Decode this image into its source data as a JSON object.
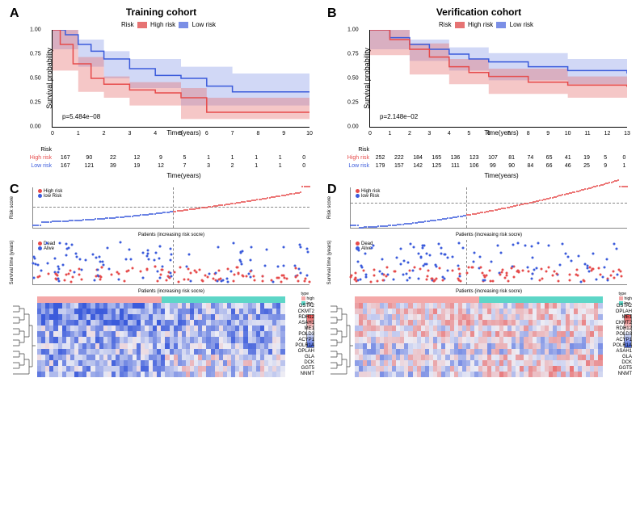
{
  "colors": {
    "high_risk": "#E67373",
    "high_risk_line": "#E64B4B",
    "low_risk": "#7B8FE6",
    "low_risk_line": "#3B5BDB",
    "heatmap_high_bar": "#F4A8A8",
    "heatmap_low_bar": "#5DD6C7",
    "heatmap_low": "#3B5BDB",
    "heatmap_mid": "#EDEDF5",
    "heatmap_high": "#E64B4B"
  },
  "panelA": {
    "label": "A",
    "title": "Training cohort",
    "legend_label": "Risk",
    "legend_items": [
      "High risk",
      "Low risk"
    ],
    "ylabel": "Survival probability",
    "xlabel": "Time(years)",
    "pvalue": "p=5.484e−08",
    "yticks": [
      0.0,
      0.25,
      0.5,
      0.75,
      1.0
    ],
    "xticks": [
      0,
      1,
      2,
      3,
      4,
      5,
      6,
      7,
      8,
      9,
      10
    ],
    "xlim": [
      0,
      10
    ],
    "ylim": [
      0,
      1
    ],
    "km_high": [
      [
        0,
        1.0
      ],
      [
        0.3,
        0.85
      ],
      [
        0.8,
        0.65
      ],
      [
        1.5,
        0.5
      ],
      [
        2.0,
        0.44
      ],
      [
        3.0,
        0.38
      ],
      [
        4.0,
        0.35
      ],
      [
        5.0,
        0.3
      ],
      [
        6.0,
        0.15
      ],
      [
        10,
        0.15
      ]
    ],
    "km_low": [
      [
        0,
        1.0
      ],
      [
        0.5,
        0.95
      ],
      [
        1.0,
        0.85
      ],
      [
        1.5,
        0.78
      ],
      [
        2.0,
        0.7
      ],
      [
        3.0,
        0.6
      ],
      [
        4.0,
        0.53
      ],
      [
        5.0,
        0.5
      ],
      [
        6.0,
        0.42
      ],
      [
        7.0,
        0.36
      ],
      [
        10,
        0.36
      ]
    ],
    "band_high_top": [
      [
        0,
        1.0
      ],
      [
        1,
        0.72
      ],
      [
        2,
        0.52
      ],
      [
        3,
        0.46
      ],
      [
        5,
        0.4
      ],
      [
        6,
        0.3
      ],
      [
        10,
        0.3
      ]
    ],
    "band_high_bot": [
      [
        0,
        1.0
      ],
      [
        1,
        0.58
      ],
      [
        2,
        0.36
      ],
      [
        3,
        0.3
      ],
      [
        5,
        0.22
      ],
      [
        6,
        0.08
      ],
      [
        10,
        0.08
      ]
    ],
    "band_low_top": [
      [
        0,
        1.0
      ],
      [
        1,
        0.9
      ],
      [
        2,
        0.78
      ],
      [
        3,
        0.7
      ],
      [
        5,
        0.62
      ],
      [
        7,
        0.55
      ],
      [
        10,
        0.55
      ]
    ],
    "band_low_bot": [
      [
        0,
        1.0
      ],
      [
        1,
        0.8
      ],
      [
        2,
        0.62
      ],
      [
        3,
        0.5
      ],
      [
        5,
        0.4
      ],
      [
        7,
        0.22
      ],
      [
        10,
        0.22
      ]
    ],
    "risk_table_xlabel": "Time(years)",
    "risk_table_rowlabel": "Risk",
    "risk_table": {
      "labels": [
        "High risk",
        "Low risk"
      ],
      "rows": [
        [
          167,
          90,
          22,
          12,
          9,
          5,
          1,
          1,
          1,
          1,
          0
        ],
        [
          167,
          121,
          39,
          19,
          12,
          7,
          3,
          2,
          1,
          1,
          0
        ]
      ]
    }
  },
  "panelB": {
    "label": "B",
    "title": "Verification cohort",
    "legend_label": "Risk",
    "legend_items": [
      "High risk",
      "Low risk"
    ],
    "ylabel": "Survival probability",
    "xlabel": "Time(years)",
    "pvalue": "p=2.148e−02",
    "yticks": [
      0.0,
      0.25,
      0.5,
      0.75,
      1.0
    ],
    "xticks": [
      0,
      1,
      2,
      3,
      4,
      5,
      6,
      7,
      8,
      9,
      10,
      11,
      12,
      13
    ],
    "xlim": [
      0,
      13
    ],
    "ylim": [
      0,
      1
    ],
    "km_high": [
      [
        0,
        1.0
      ],
      [
        1,
        0.9
      ],
      [
        2,
        0.8
      ],
      [
        3,
        0.72
      ],
      [
        4,
        0.62
      ],
      [
        5,
        0.56
      ],
      [
        6,
        0.52
      ],
      [
        8,
        0.46
      ],
      [
        10,
        0.43
      ],
      [
        13,
        0.41
      ]
    ],
    "km_low": [
      [
        0,
        1.0
      ],
      [
        1,
        0.92
      ],
      [
        2,
        0.85
      ],
      [
        3,
        0.8
      ],
      [
        4,
        0.75
      ],
      [
        5,
        0.7
      ],
      [
        6,
        0.67
      ],
      [
        8,
        0.62
      ],
      [
        10,
        0.58
      ],
      [
        13,
        0.55
      ]
    ],
    "band_high_top": [
      [
        0,
        1.0
      ],
      [
        2,
        0.86
      ],
      [
        4,
        0.7
      ],
      [
        6,
        0.6
      ],
      [
        10,
        0.52
      ],
      [
        13,
        0.52
      ]
    ],
    "band_high_bot": [
      [
        0,
        1.0
      ],
      [
        2,
        0.74
      ],
      [
        4,
        0.54
      ],
      [
        6,
        0.44
      ],
      [
        10,
        0.34
      ],
      [
        13,
        0.3
      ]
    ],
    "band_low_top": [
      [
        0,
        1.0
      ],
      [
        2,
        0.9
      ],
      [
        4,
        0.82
      ],
      [
        6,
        0.76
      ],
      [
        10,
        0.7
      ],
      [
        13,
        0.68
      ]
    ],
    "band_low_bot": [
      [
        0,
        1.0
      ],
      [
        2,
        0.8
      ],
      [
        4,
        0.68
      ],
      [
        6,
        0.58
      ],
      [
        10,
        0.48
      ],
      [
        13,
        0.44
      ]
    ],
    "risk_table": {
      "labels": [
        "High risk",
        "Low risk"
      ],
      "rows": [
        [
          252,
          222,
          184,
          165,
          136,
          123,
          107,
          81,
          74,
          65,
          41,
          19,
          5,
          0
        ],
        [
          179,
          157,
          142,
          125,
          111,
          106,
          99,
          90,
          84,
          66,
          46,
          25,
          9,
          1
        ]
      ]
    }
  },
  "panelC": {
    "label": "C",
    "risk_score": {
      "ylabel": "Risk score",
      "xlabel": "Patients (increasing risk socre)",
      "legend": [
        "High risk",
        "low Risk"
      ],
      "xlim": [
        0,
        330
      ],
      "ylim": [
        -2,
        2
      ],
      "split": 167
    },
    "surv_time": {
      "ylabel": "Survival time (years)",
      "xlabel": "Patients (increasing risk socre)",
      "legend": [
        "Dead",
        "Alive"
      ],
      "xlim": [
        0,
        330
      ],
      "ylim": [
        0,
        10
      ],
      "split": 167
    },
    "heatmap": {
      "genes": [
        "GSTA2",
        "CKMT2",
        "RDH12",
        "ASAH1",
        "ME1",
        "POLD3",
        "ACYP1",
        "POLR1A",
        "OPLAH",
        "GLA",
        "DCK",
        "GGT5",
        "NNMT"
      ],
      "type_label": "type",
      "type_levels": [
        "high",
        "low"
      ],
      "scale_ticks": [
        2,
        3,
        4,
        5,
        6
      ]
    }
  },
  "panelD": {
    "label": "D",
    "risk_score": {
      "ylabel": "Risk score",
      "xlabel": "Patients (increasing risk socre)",
      "legend": [
        "High risk",
        "low Risk"
      ],
      "xlim": [
        0,
        430
      ],
      "ylim": [
        -1.5,
        1.0
      ],
      "split": 180
    },
    "surv_time": {
      "ylabel": "Survival time (years)",
      "xlabel": "Patients (increasing risk socre)",
      "legend": [
        "Dead",
        "Alive"
      ],
      "xlim": [
        0,
        430
      ],
      "ylim": [
        0,
        13
      ],
      "split": 180
    },
    "heatmap": {
      "genes": [
        "GSTA2",
        "OPLAH",
        "ME1",
        "CKMT2",
        "RDH12",
        "POLD3",
        "ACYP1",
        "POLR1A",
        "ASAH1",
        "GLA",
        "DCK",
        "GGT5",
        "NNMT"
      ],
      "type_label": "type",
      "type_levels": [
        "high",
        "low"
      ],
      "scale_ticks": [
        1,
        2,
        3,
        4
      ]
    }
  }
}
